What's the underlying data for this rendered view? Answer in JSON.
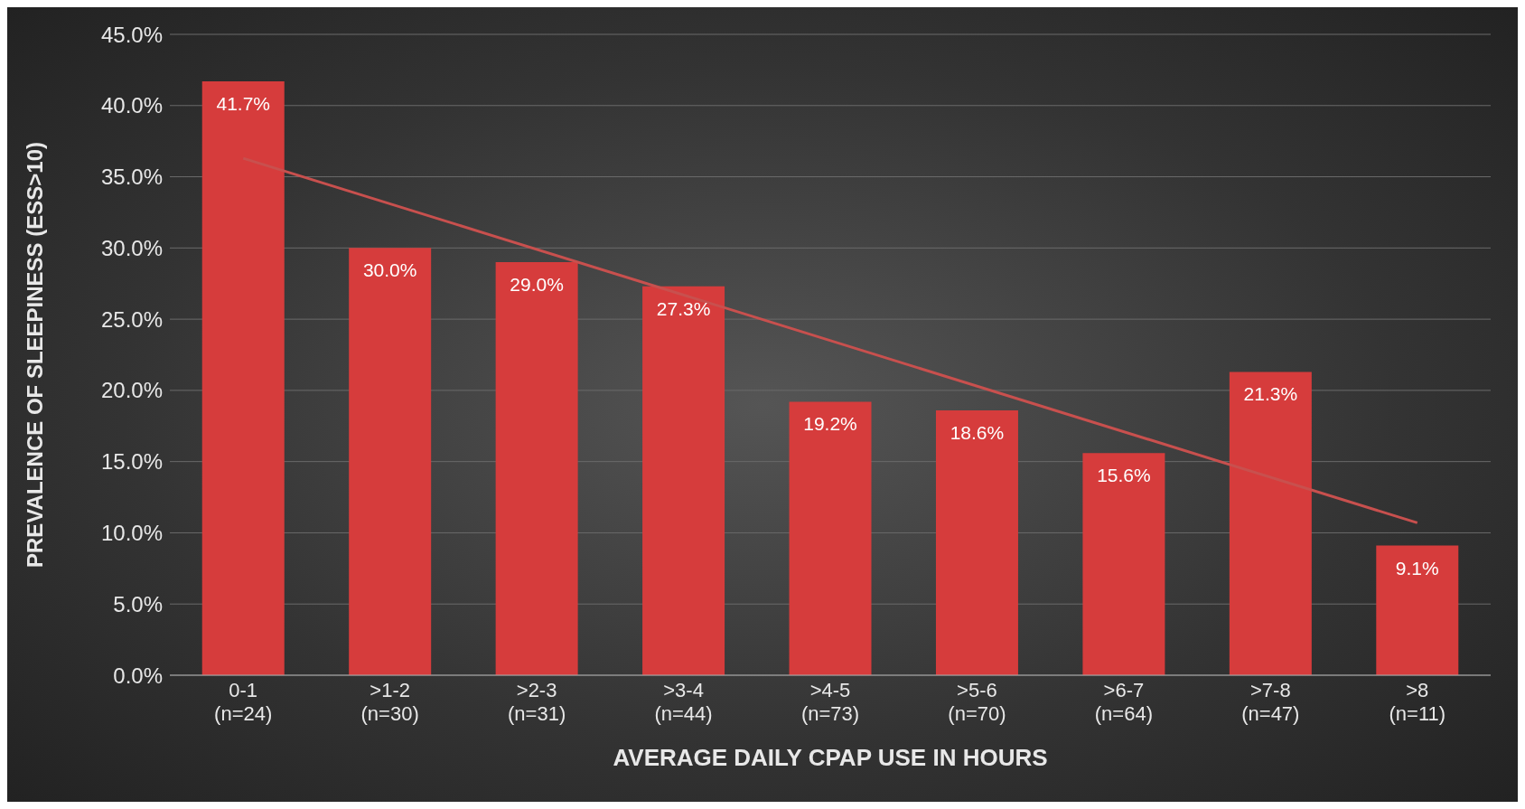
{
  "chart_data": {
    "type": "bar",
    "xlabel": "AVERAGE DAILY CPAP USE IN HOURS",
    "ylabel": "PREVALENCE OF SLEEPINESS (ESS>10)",
    "categories": [
      "0-1\n(n=24)",
      ">1-2\n(n=30)",
      ">2-3\n(n=31)",
      ">3-4\n(n=44)",
      ">4-5\n(n=73)",
      ">5-6\n(n=70)",
      ">6-7\n(n=64)",
      ">7-8\n(n=47)",
      ">8\n(n=11)"
    ],
    "series": [
      {
        "color": "#d63c3c",
        "values": [
          41.7,
          30.0,
          29.0,
          27.3,
          19.2,
          18.6,
          15.6,
          21.3,
          9.1
        ],
        "value_labels": [
          "41.7%",
          "30.0%",
          "29.0%",
          "27.3%",
          "19.2%",
          "18.6%",
          "15.6%",
          "21.3%",
          "9.1%"
        ]
      },
      {
        "type": "line",
        "color": "#c8504e",
        "x": [
          "0-1\n(n=24)",
          ">8\n(n=11)"
        ],
        "values": [
          36.3,
          10.7
        ]
      }
    ],
    "ylim": [
      0,
      45
    ],
    "yticks": [
      {
        "value": 0,
        "label": "0.0%"
      },
      {
        "value": 5,
        "label": "5.0%"
      },
      {
        "value": 10,
        "label": "10.0%"
      },
      {
        "value": 15,
        "label": "15.0%"
      },
      {
        "value": 20,
        "label": "20.0%"
      },
      {
        "value": 25,
        "label": "25.0%"
      },
      {
        "value": 30,
        "label": "30.0%"
      },
      {
        "value": 35,
        "label": "35.0%"
      },
      {
        "value": 40,
        "label": "40.0%"
      },
      {
        "value": 45,
        "label": "45.0%"
      }
    ],
    "grid": "y",
    "legend": false,
    "marker": "none",
    "line_style": "solid"
  }
}
